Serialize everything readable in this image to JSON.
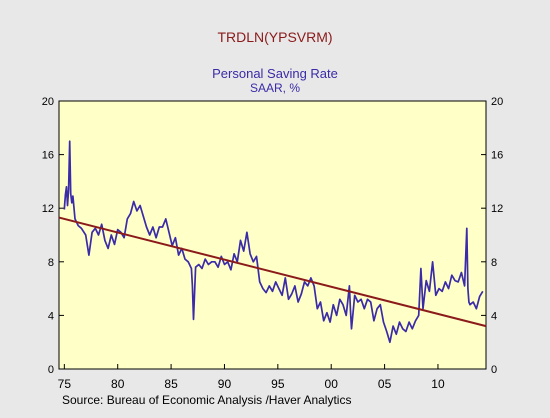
{
  "colors": {
    "background": "#e8e8e8",
    "plot_background": "#ffffc8",
    "series": "#3a2ba8",
    "trend": "#8b1a1a",
    "top_title": "#8b1a1a",
    "title": "#3a2ba8",
    "text": "#000000"
  },
  "chart_data": {
    "type": "line",
    "top_title": "TRDLN(YPSVRM)",
    "title": "Personal Saving Rate",
    "subtitle": "SAAR, %",
    "source": "Source:  Bureau of Economic Analysis /Haver Analytics",
    "xlabel": "",
    "ylabel": "",
    "xlim": [
      1974.5,
      2014.5
    ],
    "ylim": [
      0,
      20
    ],
    "y_ticks": [
      0,
      4,
      8,
      12,
      16,
      20
    ],
    "y_tick_labels": [
      "0",
      "4",
      "8",
      "12",
      "16",
      "20"
    ],
    "x_ticks": [
      1975,
      1980,
      1985,
      1990,
      1995,
      2000,
      2005,
      2010
    ],
    "x_tick_labels": [
      "75",
      "80",
      "85",
      "90",
      "95",
      "00",
      "05",
      "10"
    ],
    "y_axis_both_sides": true,
    "grid": false,
    "series": [
      {
        "type": "line",
        "x": [
          1975.0,
          1975.1,
          1975.2,
          1975.3,
          1975.4,
          1975.5,
          1975.6,
          1975.7,
          1975.8,
          1976.0,
          1976.3,
          1976.6,
          1977.0,
          1977.3,
          1977.6,
          1977.9,
          1978.2,
          1978.5,
          1978.8,
          1979.1,
          1979.4,
          1979.7,
          1980.0,
          1980.3,
          1980.6,
          1980.9,
          1981.2,
          1981.5,
          1981.8,
          1982.1,
          1982.4,
          1982.7,
          1983.0,
          1983.3,
          1983.6,
          1983.9,
          1984.2,
          1984.5,
          1984.8,
          1985.1,
          1985.4,
          1985.7,
          1986.0,
          1986.3,
          1986.6,
          1986.9,
          1987.0,
          1987.1,
          1987.3,
          1987.6,
          1987.9,
          1988.2,
          1988.5,
          1988.8,
          1989.1,
          1989.4,
          1989.7,
          1990.0,
          1990.3,
          1990.6,
          1990.9,
          1991.2,
          1991.5,
          1991.8,
          1992.1,
          1992.4,
          1992.7,
          1993.0,
          1993.3,
          1993.6,
          1993.9,
          1994.2,
          1994.5,
          1994.8,
          1995.1,
          1995.4,
          1995.7,
          1996.0,
          1996.3,
          1996.6,
          1996.9,
          1997.2,
          1997.5,
          1997.8,
          1998.1,
          1998.4,
          1998.7,
          1999.0,
          1999.3,
          1999.6,
          1999.9,
          2000.2,
          2000.5,
          2000.8,
          2001.1,
          2001.4,
          2001.7,
          2001.8,
          2001.9,
          2002.2,
          2002.5,
          2002.8,
          2003.1,
          2003.4,
          2003.7,
          2004.0,
          2004.3,
          2004.6,
          2004.9,
          2005.2,
          2005.5,
          2005.8,
          2006.1,
          2006.4,
          2006.7,
          2007.0,
          2007.3,
          2007.6,
          2007.9,
          2008.2,
          2008.4,
          2008.6,
          2008.9,
          2009.2,
          2009.5,
          2009.8,
          2010.1,
          2010.4,
          2010.7,
          2011.0,
          2011.3,
          2011.6,
          2011.9,
          2012.2,
          2012.5,
          2012.7,
          2012.8,
          2012.9,
          2013.0,
          2013.3,
          2013.6,
          2013.9,
          2014.2
        ],
        "values": [
          11.9,
          13.0,
          13.6,
          12.2,
          13.4,
          17.0,
          13.1,
          12.4,
          12.9,
          11.2,
          10.7,
          10.5,
          10.0,
          8.5,
          10.2,
          10.5,
          10.0,
          10.8,
          9.6,
          9.0,
          10.0,
          9.3,
          10.4,
          10.2,
          9.8,
          11.2,
          11.6,
          12.5,
          11.8,
          12.2,
          11.4,
          10.6,
          10.0,
          10.6,
          9.8,
          10.6,
          10.6,
          11.2,
          10.2,
          9.2,
          9.8,
          8.5,
          9.0,
          8.2,
          8.0,
          7.5,
          6.2,
          3.7,
          7.6,
          7.8,
          7.5,
          8.2,
          7.8,
          8.0,
          8.0,
          7.6,
          8.4,
          7.8,
          8.0,
          7.4,
          8.6,
          8.0,
          9.6,
          8.8,
          10.2,
          8.6,
          8.0,
          8.4,
          6.5,
          6.0,
          5.7,
          6.2,
          5.8,
          6.5,
          6.0,
          5.5,
          6.8,
          5.2,
          5.6,
          6.2,
          5.0,
          5.6,
          6.5,
          6.2,
          6.8,
          6.2,
          4.5,
          5.0,
          3.6,
          4.2,
          3.5,
          4.8,
          4.0,
          5.2,
          4.8,
          4.0,
          6.2,
          4.5,
          3.0,
          5.5,
          5.0,
          5.2,
          4.5,
          5.2,
          5.0,
          3.6,
          4.5,
          4.8,
          3.5,
          2.8,
          2.0,
          3.2,
          2.6,
          3.5,
          3.0,
          2.8,
          3.5,
          3.0,
          3.6,
          4.0,
          7.5,
          4.5,
          6.6,
          5.8,
          8.0,
          5.5,
          6.0,
          5.8,
          6.5,
          6.0,
          7.0,
          6.6,
          6.5,
          7.2,
          6.2,
          10.5,
          6.0,
          5.0,
          4.8,
          5.0,
          4.5,
          5.4,
          5.8
        ]
      },
      {
        "type": "trend",
        "x": [
          1974.5,
          2014.5
        ],
        "values": [
          11.3,
          3.2
        ]
      }
    ]
  }
}
